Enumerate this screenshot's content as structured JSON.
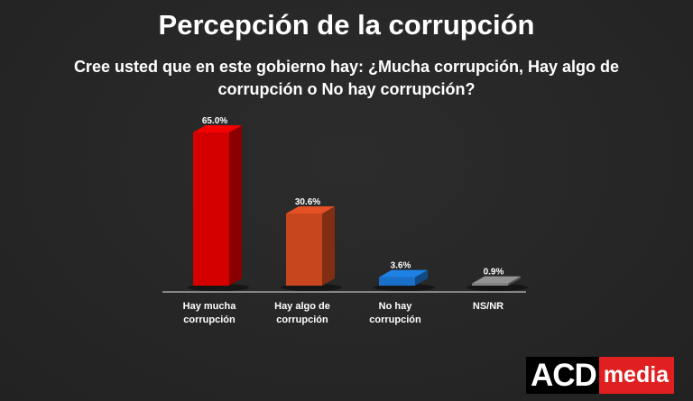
{
  "chart_data": {
    "type": "bar",
    "title": "Percepción de la corrupción",
    "subtitle": "Cree usted que en este gobierno hay: ¿Mucha corrupción, Hay algo de corrupción o No hay corrupción?",
    "categories": [
      [
        "Hay mucha",
        "corrupción"
      ],
      [
        "Hay algo de",
        "corrupción"
      ],
      [
        "No hay",
        "corrupción"
      ],
      [
        "NS/NR"
      ]
    ],
    "values": [
      65.0,
      30.6,
      3.6,
      0.9
    ],
    "data_labels": [
      "65.0%",
      "30.6%",
      "3.6%",
      "0.9%"
    ],
    "colors": [
      "#d40000",
      "#c8461e",
      "#1a70c8",
      "#808080"
    ],
    "xlabel": "",
    "ylabel": "",
    "ylim": [
      0,
      70
    ],
    "grid": false,
    "style": "3d-columns"
  },
  "logo": {
    "text_1": "ACD",
    "text_2": "media"
  }
}
